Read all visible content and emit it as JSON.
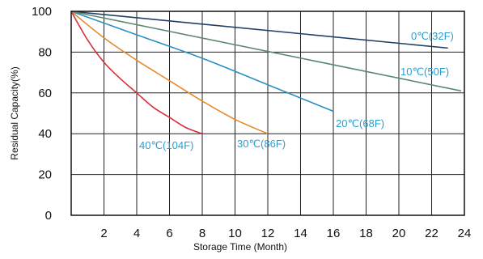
{
  "chart_data": {
    "type": "line",
    "xlabel": "Storage Time (Month)",
    "ylabel": "Residual Capacity(%)",
    "xlim": [
      0,
      24
    ],
    "ylim": [
      0,
      100
    ],
    "xticks": [
      2,
      4,
      6,
      8,
      10,
      12,
      14,
      16,
      18,
      20,
      22,
      24
    ],
    "yticks": [
      0,
      20,
      40,
      60,
      80,
      100
    ],
    "grid": true,
    "label_color": "#2a9ed0",
    "series": [
      {
        "name": "0℃(32F)",
        "color": "#1f3f66",
        "x": [
          0,
          23
        ],
        "y": [
          100,
          82
        ]
      },
      {
        "name": "10℃(50F)",
        "color": "#5c8a6e",
        "x": [
          0,
          23.8
        ],
        "y": [
          100,
          61
        ]
      },
      {
        "name": "20℃(68F)",
        "color": "#2a8fc4",
        "x": [
          0,
          4,
          8,
          12,
          16
        ],
        "y": [
          100,
          88.5,
          77,
          64,
          51
        ]
      },
      {
        "name": "30℃(86F)",
        "color": "#e58a2a",
        "x": [
          0,
          2,
          4,
          6,
          8,
          10,
          12
        ],
        "y": [
          100,
          87,
          76,
          66,
          56,
          47,
          40
        ]
      },
      {
        "name": "40℃(104F)",
        "color": "#d6303c",
        "x": [
          0,
          1,
          2,
          3,
          4,
          5,
          6,
          7,
          8
        ],
        "y": [
          100,
          86,
          75,
          67,
          60,
          53,
          48,
          43,
          40
        ]
      }
    ]
  }
}
